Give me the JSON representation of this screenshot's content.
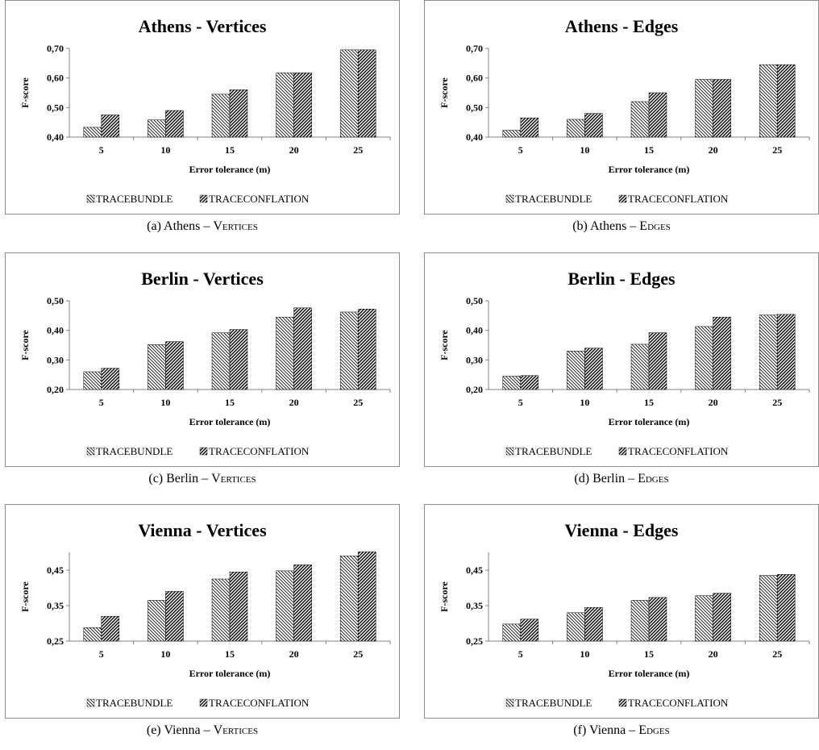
{
  "legend": {
    "series_a": "TRACEBUNDLE",
    "series_b": "TRACECONFLATION"
  },
  "colors": {
    "frame": "#8c8c8c",
    "axis": "#808080",
    "bar_stroke": "#000000",
    "hatch": "#000000",
    "background": "#ffffff"
  },
  "chart_data": [
    {
      "type": "bar",
      "title": "Athens - Vertices",
      "caption_prefix": "(a) Athens – ",
      "caption_term": "Vertices",
      "xlabel": "Error tolerance (m)",
      "ylabel": "F-score",
      "categories": [
        "5",
        "10",
        "15",
        "20",
        "25"
      ],
      "ylim": [
        0.4,
        0.7
      ],
      "yticks": [
        0.4,
        0.5,
        0.6,
        0.7
      ],
      "yticklabels": [
        "0,40",
        "0,50",
        "0,60",
        "0,70"
      ],
      "series": [
        {
          "name": "TRACEBUNDLE",
          "values": [
            0.433,
            0.458,
            0.545,
            0.617,
            0.695
          ]
        },
        {
          "name": "TRACECONFLATION",
          "values": [
            0.475,
            0.49,
            0.56,
            0.617,
            0.695
          ]
        }
      ]
    },
    {
      "type": "bar",
      "title": "Athens - Edges",
      "caption_prefix": "(b) Athens – ",
      "caption_term": "Edges",
      "xlabel": "Error tolerance (m)",
      "ylabel": "F-score",
      "categories": [
        "5",
        "10",
        "15",
        "20",
        "25"
      ],
      "ylim": [
        0.4,
        0.7
      ],
      "yticks": [
        0.4,
        0.5,
        0.6,
        0.7
      ],
      "yticklabels": [
        "0,40",
        "0,50",
        "0,60",
        "0,70"
      ],
      "series": [
        {
          "name": "TRACEBUNDLE",
          "values": [
            0.423,
            0.46,
            0.52,
            0.595,
            0.645
          ]
        },
        {
          "name": "TRACECONFLATION",
          "values": [
            0.465,
            0.48,
            0.55,
            0.595,
            0.645
          ]
        }
      ]
    },
    {
      "type": "bar",
      "title": "Berlin - Vertices",
      "caption_prefix": "(c) Berlin – ",
      "caption_term": "Vertices",
      "xlabel": "Error tolerance (m)",
      "ylabel": "F-score",
      "categories": [
        "5",
        "10",
        "15",
        "20",
        "25"
      ],
      "ylim": [
        0.2,
        0.5
      ],
      "yticks": [
        0.2,
        0.3,
        0.4,
        0.5
      ],
      "yticklabels": [
        "0,20",
        "0,30",
        "0,40",
        "0,50"
      ],
      "series": [
        {
          "name": "TRACEBUNDLE",
          "values": [
            0.26,
            0.352,
            0.392,
            0.445,
            0.462
          ]
        },
        {
          "name": "TRACECONFLATION",
          "values": [
            0.272,
            0.362,
            0.403,
            0.476,
            0.472
          ]
        }
      ]
    },
    {
      "type": "bar",
      "title": "Berlin - Edges",
      "caption_prefix": "(d) Berlin – ",
      "caption_term": "Edges",
      "xlabel": "Error tolerance (m)",
      "ylabel": "F-score",
      "categories": [
        "5",
        "10",
        "15",
        "20",
        "25"
      ],
      "ylim": [
        0.2,
        0.5
      ],
      "yticks": [
        0.2,
        0.3,
        0.4,
        0.5
      ],
      "yticklabels": [
        "0,20",
        "0,30",
        "0,40",
        "0,50"
      ],
      "series": [
        {
          "name": "TRACEBUNDLE",
          "values": [
            0.245,
            0.33,
            0.353,
            0.413,
            0.452
          ]
        },
        {
          "name": "TRACECONFLATION",
          "values": [
            0.247,
            0.34,
            0.392,
            0.445,
            0.454
          ]
        }
      ]
    },
    {
      "type": "bar",
      "title": "Vienna - Vertices",
      "caption_prefix": "(e) Vienna – ",
      "caption_term": "Vertices",
      "xlabel": "Error tolerance (m)",
      "ylabel": "F-score",
      "categories": [
        "5",
        "10",
        "15",
        "20",
        "25"
      ],
      "ylim": [
        0.25,
        0.5
      ],
      "yticks": [
        0.25,
        0.35,
        0.45
      ],
      "yticklabels": [
        "0,25",
        "0,35",
        "0,45"
      ],
      "series": [
        {
          "name": "TRACEBUNDLE",
          "values": [
            0.288,
            0.365,
            0.425,
            0.448,
            0.49
          ]
        },
        {
          "name": "TRACECONFLATION",
          "values": [
            0.32,
            0.39,
            0.445,
            0.465,
            0.502
          ]
        }
      ]
    },
    {
      "type": "bar",
      "title": "Vienna - Edges",
      "caption_prefix": "(f) Vienna – ",
      "caption_term": "Edges",
      "xlabel": "Error tolerance (m)",
      "ylabel": "F-score",
      "categories": [
        "5",
        "10",
        "15",
        "20",
        "25"
      ],
      "ylim": [
        0.25,
        0.5
      ],
      "yticks": [
        0.25,
        0.35,
        0.45
      ],
      "yticklabels": [
        "0,25",
        "0,35",
        "0,45"
      ],
      "series": [
        {
          "name": "TRACEBUNDLE",
          "values": [
            0.298,
            0.33,
            0.365,
            0.378,
            0.435
          ]
        },
        {
          "name": "TRACECONFLATION",
          "values": [
            0.312,
            0.345,
            0.373,
            0.385,
            0.438
          ]
        }
      ]
    }
  ]
}
